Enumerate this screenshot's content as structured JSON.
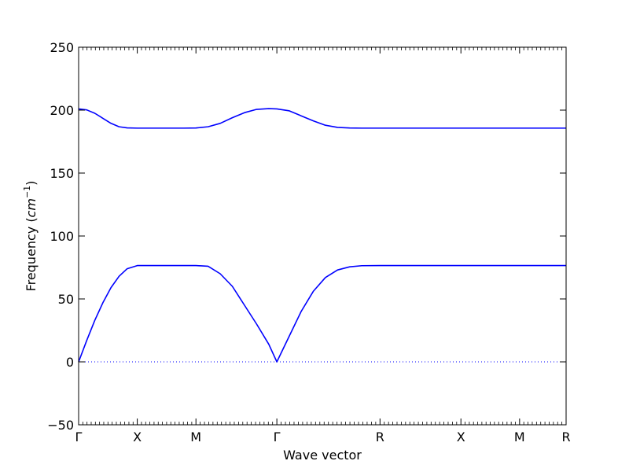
{
  "chart_data": {
    "type": "line",
    "xlabel": "Wave vector",
    "ylabel_text": "Frequency",
    "ylabel_unit": "cm",
    "ylabel_exp": "−1",
    "ylim": [
      -50,
      250
    ],
    "y_ticks": [
      -50,
      0,
      50,
      100,
      150,
      200,
      250
    ],
    "y_tick_labels": [
      "−50",
      "0",
      "50",
      "100",
      "150",
      "200",
      "250"
    ],
    "x_range": [
      0,
      6.025
    ],
    "x_ticks": [
      {
        "label": "Γ",
        "x": 0.0
      },
      {
        "label": "X",
        "x": 0.725
      },
      {
        "label": "M",
        "x": 1.45
      },
      {
        "label": "Γ",
        "x": 2.45
      },
      {
        "label": "R",
        "x": 3.725
      },
      {
        "label": "X",
        "x": 4.725
      },
      {
        "label": "M",
        "x": 5.45
      },
      {
        "label": "R",
        "x": 6.025
      }
    ],
    "zero_line": true,
    "zero_line_style": "dotted",
    "line_color": "#0000ff",
    "series": [
      {
        "x": [
          0,
          0.1,
          0.2,
          0.3,
          0.4,
          0.5,
          0.6,
          0.725,
          0.9,
          1.1,
          1.3,
          1.45,
          1.6,
          1.75,
          1.9,
          2.05,
          2.2,
          2.35,
          2.45,
          2.6,
          2.75,
          2.9,
          3.05,
          3.2,
          3.35,
          3.5,
          3.725,
          4.2,
          4.725,
          5.1,
          5.45,
          5.8,
          6.025
        ],
        "y": [
          0,
          17,
          33,
          47,
          59,
          68,
          74,
          76.5,
          76.5,
          76.5,
          76.5,
          76.5,
          76,
          70,
          60,
          45,
          30,
          14,
          0,
          20,
          40,
          56,
          67,
          73,
          75.5,
          76.4,
          76.5,
          76.5,
          76.5,
          76.5,
          76.5,
          76.5,
          76.5
        ]
      },
      {
        "x": [
          0,
          0.1,
          0.2,
          0.3,
          0.4,
          0.5,
          0.6,
          0.725,
          0.9,
          1.1,
          1.3,
          1.45,
          1.6,
          1.75,
          1.9,
          2.05,
          2.2,
          2.35,
          2.45,
          2.6,
          2.75,
          2.9,
          3.05,
          3.2,
          3.35,
          3.5,
          3.725,
          4.2,
          4.725,
          5.1,
          5.45,
          5.8,
          6.025
        ],
        "y": [
          201,
          200.2,
          197.5,
          193.5,
          189.5,
          186.8,
          185.9,
          185.7,
          185.7,
          185.7,
          185.7,
          185.8,
          186.8,
          189.5,
          194,
          198,
          200.6,
          201.2,
          201,
          199.5,
          195.5,
          191.5,
          188,
          186.3,
          185.8,
          185.7,
          185.7,
          185.7,
          185.7,
          185.7,
          185.7,
          185.7,
          185.7
        ]
      }
    ]
  }
}
